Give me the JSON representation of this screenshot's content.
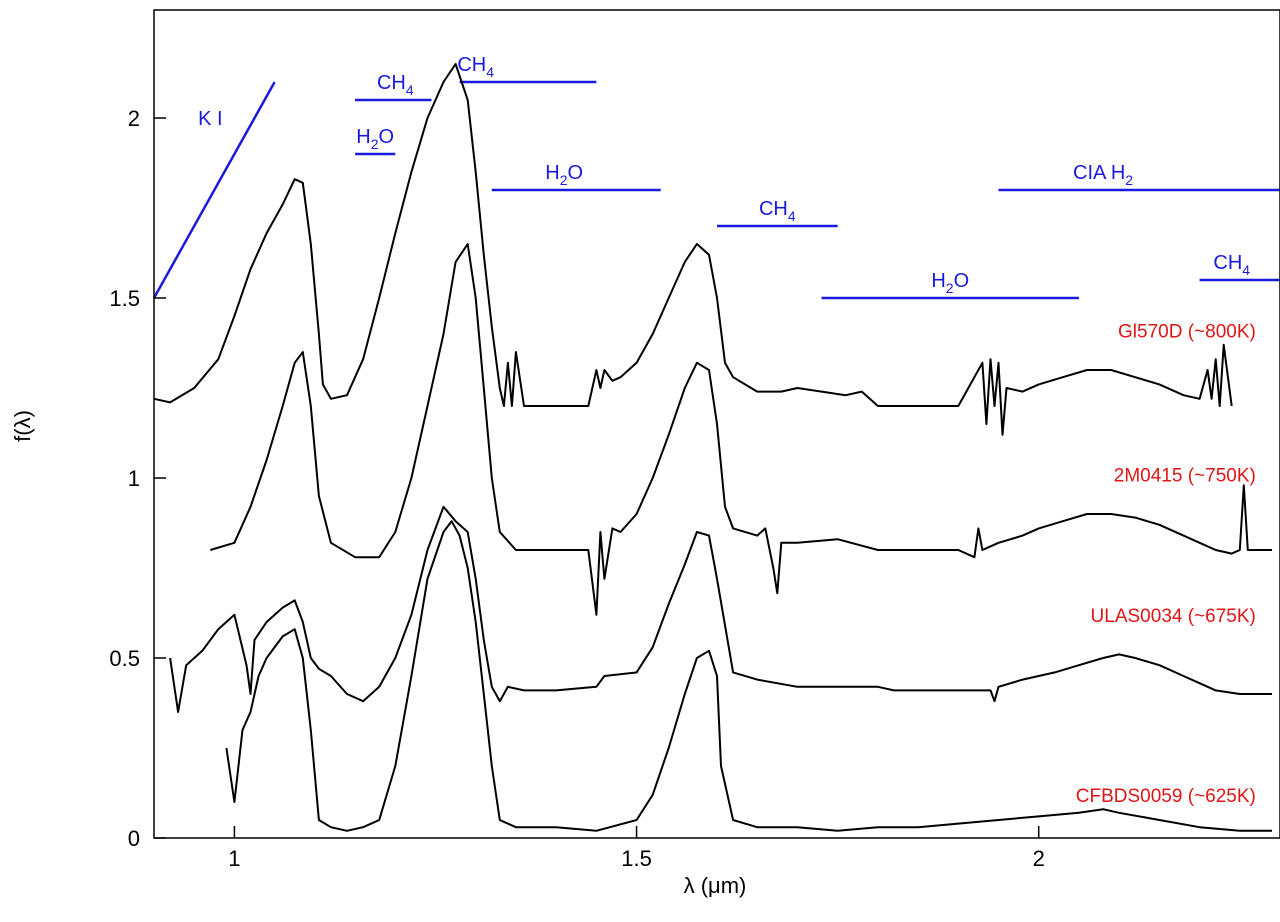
{
  "chart_data": {
    "type": "line",
    "xlabel": "λ (μm)",
    "ylabel": "f(λ)",
    "xlim": [
      0.9,
      2.3
    ],
    "ylim": [
      0,
      2.3
    ],
    "xticks": [
      {
        "value": 1,
        "label": "1"
      },
      {
        "value": 1.5,
        "label": "1.5"
      },
      {
        "value": 2,
        "label": "2"
      }
    ],
    "yticks": [
      {
        "value": 0,
        "label": "0"
      },
      {
        "value": 0.5,
        "label": "0.5"
      },
      {
        "value": 1,
        "label": "1"
      },
      {
        "value": 1.5,
        "label": "1.5"
      },
      {
        "value": 2,
        "label": "2"
      }
    ],
    "grid": false,
    "line_color": "#000000",
    "band_color": "#1a1adc",
    "label_color": "#e01515",
    "series": [
      {
        "name": "Gl570D (~800K)",
        "label_at": [
          2.27,
          1.39
        ],
        "x": [
          0.9,
          0.92,
          0.95,
          0.98,
          1.0,
          1.02,
          1.04,
          1.06,
          1.075,
          1.085,
          1.095,
          1.105,
          1.11,
          1.12,
          1.14,
          1.16,
          1.18,
          1.2,
          1.22,
          1.24,
          1.26,
          1.275,
          1.29,
          1.3,
          1.31,
          1.32,
          1.33,
          1.335,
          1.34,
          1.345,
          1.35,
          1.36,
          1.4,
          1.44,
          1.45,
          1.455,
          1.46,
          1.47,
          1.48,
          1.5,
          1.52,
          1.54,
          1.56,
          1.575,
          1.59,
          1.6,
          1.61,
          1.62,
          1.65,
          1.68,
          1.7,
          1.73,
          1.76,
          1.78,
          1.8,
          1.82,
          1.85,
          1.9,
          1.93,
          1.935,
          1.94,
          1.945,
          1.95,
          1.955,
          1.96,
          1.98,
          2.0,
          2.03,
          2.06,
          2.09,
          2.12,
          2.15,
          2.18,
          2.2,
          2.21,
          2.215,
          2.22,
          2.225,
          2.23,
          2.24
        ],
        "y": [
          1.22,
          1.21,
          1.25,
          1.33,
          1.45,
          1.58,
          1.68,
          1.76,
          1.83,
          1.82,
          1.65,
          1.4,
          1.26,
          1.22,
          1.23,
          1.33,
          1.5,
          1.68,
          1.85,
          2.0,
          2.1,
          2.15,
          2.05,
          1.85,
          1.62,
          1.42,
          1.25,
          1.2,
          1.32,
          1.2,
          1.35,
          1.2,
          1.2,
          1.2,
          1.3,
          1.25,
          1.3,
          1.27,
          1.28,
          1.32,
          1.4,
          1.5,
          1.6,
          1.65,
          1.62,
          1.5,
          1.32,
          1.28,
          1.24,
          1.24,
          1.25,
          1.24,
          1.23,
          1.24,
          1.2,
          1.2,
          1.2,
          1.2,
          1.32,
          1.15,
          1.33,
          1.2,
          1.32,
          1.12,
          1.25,
          1.24,
          1.26,
          1.28,
          1.3,
          1.3,
          1.28,
          1.26,
          1.23,
          1.22,
          1.3,
          1.22,
          1.33,
          1.2,
          1.37,
          1.2
        ]
      },
      {
        "name": "2M0415 (~750K)",
        "label_at": [
          2.27,
          0.99
        ],
        "x": [
          0.97,
          1.0,
          1.02,
          1.04,
          1.06,
          1.075,
          1.085,
          1.095,
          1.105,
          1.12,
          1.15,
          1.18,
          1.2,
          1.22,
          1.24,
          1.26,
          1.275,
          1.29,
          1.3,
          1.31,
          1.32,
          1.33,
          1.35,
          1.4,
          1.44,
          1.45,
          1.455,
          1.46,
          1.47,
          1.48,
          1.5,
          1.52,
          1.54,
          1.56,
          1.575,
          1.59,
          1.6,
          1.61,
          1.62,
          1.65,
          1.66,
          1.67,
          1.675,
          1.68,
          1.7,
          1.75,
          1.8,
          1.85,
          1.9,
          1.92,
          1.925,
          1.93,
          1.95,
          1.98,
          2.0,
          2.03,
          2.06,
          2.09,
          2.12,
          2.15,
          2.18,
          2.2,
          2.22,
          2.24,
          2.25,
          2.255,
          2.26,
          2.29
        ],
        "y": [
          0.8,
          0.82,
          0.92,
          1.05,
          1.2,
          1.32,
          1.35,
          1.2,
          0.95,
          0.82,
          0.78,
          0.78,
          0.85,
          1.0,
          1.2,
          1.4,
          1.6,
          1.65,
          1.5,
          1.25,
          1.0,
          0.85,
          0.8,
          0.8,
          0.8,
          0.62,
          0.85,
          0.72,
          0.86,
          0.85,
          0.9,
          1.0,
          1.12,
          1.25,
          1.32,
          1.3,
          1.15,
          0.92,
          0.86,
          0.84,
          0.86,
          0.75,
          0.68,
          0.82,
          0.82,
          0.83,
          0.8,
          0.8,
          0.8,
          0.78,
          0.86,
          0.8,
          0.82,
          0.84,
          0.86,
          0.88,
          0.9,
          0.9,
          0.89,
          0.87,
          0.84,
          0.82,
          0.8,
          0.79,
          0.8,
          0.98,
          0.8,
          0.8
        ]
      },
      {
        "name": "ULAS0034 (~675K)",
        "label_at": [
          2.27,
          0.6
        ],
        "x": [
          0.92,
          0.93,
          0.94,
          0.96,
          0.98,
          1.0,
          1.015,
          1.02,
          1.025,
          1.04,
          1.06,
          1.075,
          1.085,
          1.095,
          1.105,
          1.12,
          1.14,
          1.16,
          1.18,
          1.2,
          1.22,
          1.24,
          1.26,
          1.275,
          1.29,
          1.3,
          1.31,
          1.32,
          1.33,
          1.34,
          1.36,
          1.4,
          1.45,
          1.46,
          1.5,
          1.52,
          1.54,
          1.56,
          1.575,
          1.59,
          1.6,
          1.62,
          1.65,
          1.7,
          1.75,
          1.8,
          1.82,
          1.85,
          1.9,
          1.94,
          1.945,
          1.95,
          1.98,
          2.0,
          2.02,
          2.05,
          2.08,
          2.1,
          2.12,
          2.15,
          2.18,
          2.2,
          2.22,
          2.25,
          2.29
        ],
        "y": [
          0.5,
          0.35,
          0.48,
          0.52,
          0.58,
          0.62,
          0.48,
          0.4,
          0.55,
          0.6,
          0.64,
          0.66,
          0.6,
          0.5,
          0.47,
          0.45,
          0.4,
          0.38,
          0.42,
          0.5,
          0.62,
          0.8,
          0.92,
          0.88,
          0.85,
          0.72,
          0.55,
          0.42,
          0.38,
          0.42,
          0.41,
          0.41,
          0.42,
          0.45,
          0.46,
          0.53,
          0.65,
          0.76,
          0.85,
          0.84,
          0.72,
          0.46,
          0.44,
          0.42,
          0.42,
          0.42,
          0.41,
          0.41,
          0.41,
          0.41,
          0.38,
          0.42,
          0.44,
          0.45,
          0.46,
          0.48,
          0.5,
          0.51,
          0.5,
          0.48,
          0.45,
          0.43,
          0.41,
          0.4,
          0.4
        ]
      },
      {
        "name": "CFBDS0059 (~625K)",
        "label_at": [
          2.27,
          0.1
        ],
        "x": [
          0.99,
          1.0,
          1.01,
          1.02,
          1.03,
          1.04,
          1.06,
          1.075,
          1.085,
          1.095,
          1.105,
          1.12,
          1.14,
          1.16,
          1.18,
          1.2,
          1.22,
          1.24,
          1.26,
          1.27,
          1.28,
          1.29,
          1.3,
          1.31,
          1.32,
          1.33,
          1.35,
          1.4,
          1.45,
          1.5,
          1.52,
          1.54,
          1.56,
          1.575,
          1.59,
          1.6,
          1.605,
          1.62,
          1.65,
          1.7,
          1.75,
          1.8,
          1.85,
          1.9,
          1.95,
          2.0,
          2.05,
          2.08,
          2.1,
          2.15,
          2.2,
          2.25,
          2.29
        ],
        "y": [
          0.25,
          0.1,
          0.3,
          0.35,
          0.45,
          0.5,
          0.56,
          0.58,
          0.5,
          0.3,
          0.05,
          0.03,
          0.02,
          0.03,
          0.05,
          0.2,
          0.45,
          0.72,
          0.85,
          0.88,
          0.84,
          0.75,
          0.6,
          0.4,
          0.2,
          0.05,
          0.03,
          0.03,
          0.02,
          0.05,
          0.12,
          0.25,
          0.4,
          0.5,
          0.52,
          0.45,
          0.2,
          0.05,
          0.03,
          0.03,
          0.02,
          0.03,
          0.03,
          0.04,
          0.05,
          0.06,
          0.07,
          0.08,
          0.07,
          0.05,
          0.03,
          0.02,
          0.02
        ]
      }
    ],
    "bands": [
      {
        "x0": 0.9,
        "x1": 1.05,
        "y0": 1.5,
        "y1": 2.1,
        "label": "K I",
        "label_at": [
          0.97,
          1.98
        ]
      },
      {
        "x0": 1.15,
        "x1": 1.245,
        "y0": 2.05,
        "y1": 2.05,
        "label": "CH4",
        "label_at": [
          1.2,
          2.08
        ]
      },
      {
        "x0": 1.15,
        "x1": 1.2,
        "y0": 1.9,
        "y1": 1.9,
        "label": "H2O",
        "label_at": [
          1.175,
          1.93
        ]
      },
      {
        "x0": 1.28,
        "x1": 1.45,
        "y0": 2.1,
        "y1": 2.1,
        "label": "CH4",
        "label_at": [
          1.3,
          2.13
        ]
      },
      {
        "x0": 1.32,
        "x1": 1.53,
        "y0": 1.8,
        "y1": 1.8,
        "label": "H2O",
        "label_at": [
          1.41,
          1.83
        ]
      },
      {
        "x0": 1.6,
        "x1": 1.75,
        "y0": 1.7,
        "y1": 1.7,
        "label": "CH4",
        "label_at": [
          1.675,
          1.73
        ]
      },
      {
        "x0": 1.73,
        "x1": 2.05,
        "y0": 1.5,
        "y1": 1.5,
        "label": "H2O",
        "label_at": [
          1.89,
          1.53
        ]
      },
      {
        "x0": 1.95,
        "x1": 2.3,
        "y0": 1.8,
        "y1": 1.8,
        "label": "CIA H2",
        "label_at": [
          2.08,
          1.83
        ]
      },
      {
        "x0": 2.2,
        "x1": 2.3,
        "y0": 1.55,
        "y1": 1.55,
        "label": "CH4",
        "label_at": [
          2.24,
          1.58
        ]
      }
    ]
  }
}
